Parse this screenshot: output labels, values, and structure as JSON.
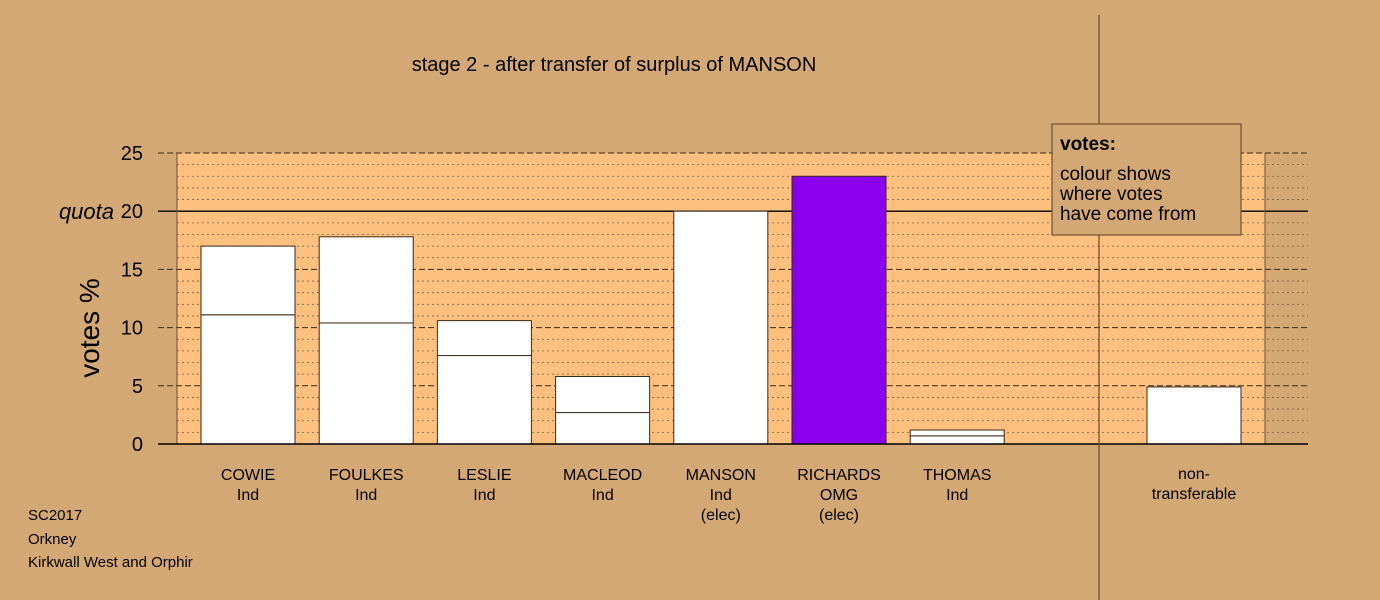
{
  "chart_data": {
    "type": "bar",
    "title": "stage 2 - after transfer of surplus of MANSON",
    "ylabel": "votes %",
    "ylim": [
      0,
      25
    ],
    "yticks": [
      0,
      5,
      10,
      15,
      20,
      25
    ],
    "quota": 20,
    "quota_label": "quota",
    "grid": true,
    "categories": [
      {
        "name": "COWIE",
        "party": "Ind",
        "status": ""
      },
      {
        "name": "FOULKES",
        "party": "Ind",
        "status": ""
      },
      {
        "name": "LESLIE",
        "party": "Ind",
        "status": ""
      },
      {
        "name": "MACLEOD",
        "party": "Ind",
        "status": ""
      },
      {
        "name": "MANSON",
        "party": "Ind",
        "status": "(elec)"
      },
      {
        "name": "RICHARDS",
        "party": "OMG",
        "status": "(elec)"
      },
      {
        "name": "THOMAS",
        "party": "Ind",
        "status": ""
      }
    ],
    "series": [
      {
        "values": [
          11.1,
          10.4,
          7.6,
          2.7,
          20.0,
          23.0,
          0.7
        ]
      },
      {
        "values": [
          5.9,
          7.4,
          3.0,
          3.1,
          0,
          0,
          0.5
        ]
      }
    ],
    "bar_colors": [
      "#ffffff",
      "#ffffff",
      "#ffffff",
      "#ffffff",
      "#ffffff",
      "#8800ee",
      "#ffffff"
    ],
    "non_transferable": {
      "label_line1": "non-",
      "label_line2": "transferable",
      "value": 4.9
    },
    "legend": {
      "placement": "top-right",
      "title": "votes:",
      "lines": [
        "colour shows",
        "where votes",
        "have come from"
      ]
    }
  },
  "footer": {
    "election": "SC2017",
    "council": "Orkney",
    "ward": "Kirkwall West and Orphir"
  },
  "colors": {
    "background": "#d4a874",
    "plot_area": "#fec07f",
    "bar": "#ffffff",
    "elected_richards": "#8800ee"
  }
}
